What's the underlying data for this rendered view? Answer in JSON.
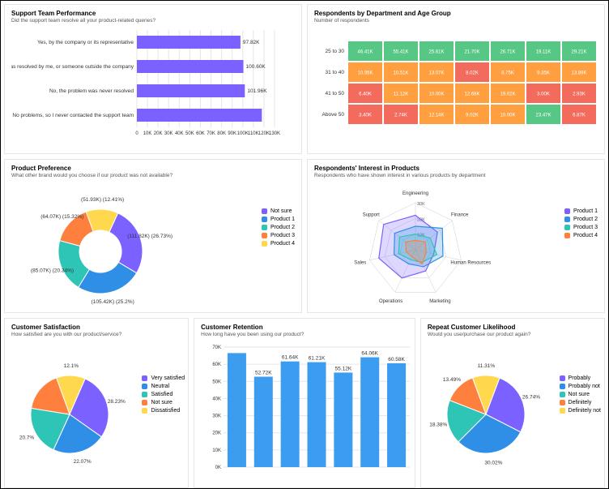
{
  "colors": {
    "purple": "#7b61ff",
    "blue": "#2f8fe6",
    "teal": "#2ec4b6",
    "orange": "#ff7f3f",
    "yellow": "#ffd84d",
    "heat_green": "#57c785",
    "heat_orange": "#ff9f40",
    "heat_red": "#f36b5c",
    "blue_bar": "#3b9cf0",
    "grid": "#e6e6e6",
    "bg": "#ffffff"
  },
  "support_perf": {
    "title": "Support Team Performance",
    "subtitle": "Did the support team resolve all your product-related queries?",
    "xmax": 130,
    "xtick_step": 10,
    "xtick_suffix": "K",
    "bar_color": "#7b61ff",
    "rows": [
      {
        "label": "Yes, by the company or its representative",
        "value": 97.82,
        "display": "97.82K"
      },
      {
        "label": "No, it was resolved by me, or someone outside the company",
        "value": 100.6,
        "display": "100.60K"
      },
      {
        "label": "No, the problem was never resolved",
        "value": 101.96,
        "display": "101.96K"
      },
      {
        "label": "No problems, so I never contacted the support team",
        "value": 118,
        "display": ""
      }
    ]
  },
  "heatmap": {
    "title": "Respondents by Department and Age Group",
    "subtitle": "Number of respondents",
    "row_labels": [
      "25 to 30",
      "31 to 40",
      "41 to 50",
      "Above 50"
    ],
    "col_count": 7,
    "cells": [
      [
        {
          "v": "46.41K",
          "c": "heat_green"
        },
        {
          "v": "55.41K",
          "c": "heat_green"
        },
        {
          "v": "25.61K",
          "c": "heat_green"
        },
        {
          "v": "21.70K",
          "c": "heat_green"
        },
        {
          "v": "26.71K",
          "c": "heat_green"
        },
        {
          "v": "19.11K",
          "c": "heat_green"
        },
        {
          "v": "29.21K",
          "c": "heat_green"
        }
      ],
      [
        {
          "v": "10.95K",
          "c": "heat_orange"
        },
        {
          "v": "10.51K",
          "c": "heat_orange"
        },
        {
          "v": "13.07K",
          "c": "heat_orange"
        },
        {
          "v": "8.02K",
          "c": "heat_red"
        },
        {
          "v": "8.75K",
          "c": "heat_orange"
        },
        {
          "v": "9.35K",
          "c": "heat_orange"
        },
        {
          "v": "13.89K",
          "c": "heat_orange"
        }
      ],
      [
        {
          "v": "6.40K",
          "c": "heat_red"
        },
        {
          "v": "11.12K",
          "c": "heat_orange"
        },
        {
          "v": "10.00K",
          "c": "heat_orange"
        },
        {
          "v": "12.68K",
          "c": "heat_orange"
        },
        {
          "v": "19.02K",
          "c": "heat_orange"
        },
        {
          "v": "3.00K",
          "c": "heat_red"
        },
        {
          "v": "2.93K",
          "c": "heat_red"
        }
      ],
      [
        {
          "v": "3.40K",
          "c": "heat_red"
        },
        {
          "v": "2.74K",
          "c": "heat_red"
        },
        {
          "v": "12.14K",
          "c": "heat_orange"
        },
        {
          "v": "9.02K",
          "c": "heat_orange"
        },
        {
          "v": "10.00K",
          "c": "heat_orange"
        },
        {
          "v": "23.47K",
          "c": "heat_green"
        },
        {
          "v": "6.87K",
          "c": "heat_red"
        }
      ]
    ]
  },
  "product_pref": {
    "title": "Product Preference",
    "subtitle": "What other brand would you choose if our product was not available?",
    "legend": [
      "Not sure",
      "Product 1",
      "Product 2",
      "Product 3",
      "Product 4"
    ],
    "legend_colors": [
      "purple",
      "blue",
      "teal",
      "orange",
      "yellow"
    ],
    "slices": [
      {
        "label": "(51.93K) (12.41%)",
        "pct": 12.41,
        "c": "yellow"
      },
      {
        "label": "(111.82K) (26.73%)",
        "pct": 26.73,
        "c": "purple"
      },
      {
        "label": "(105.42K) (25.2%)",
        "pct": 25.2,
        "c": "blue"
      },
      {
        "label": "(85.07K) (20.34%)",
        "pct": 20.34,
        "c": "teal"
      },
      {
        "label": "(64.07K) (15.32%)",
        "pct": 15.32,
        "c": "orange"
      }
    ],
    "inner_radius_ratio": 0.5
  },
  "radar": {
    "title": "Respondents' Interest in Products",
    "subtitle": "Respondents who have shown interest in various products by department",
    "axes": [
      "Engineering",
      "Finance",
      "Human Resources",
      "Marketing",
      "Operations",
      "Sales",
      "Support"
    ],
    "ticks": [
      "10K",
      "20K",
      "30K"
    ],
    "max": 30,
    "series": [
      {
        "name": "Product 1",
        "c": "purple",
        "vals": [
          22,
          18,
          12,
          15,
          20,
          24,
          26
        ]
      },
      {
        "name": "Product 2",
        "c": "blue",
        "vals": [
          15,
          22,
          18,
          12,
          10,
          14,
          17
        ]
      },
      {
        "name": "Product 3",
        "c": "teal",
        "vals": [
          10,
          12,
          14,
          9,
          7,
          11,
          13
        ]
      },
      {
        "name": "Product 4",
        "c": "orange",
        "vals": [
          6,
          8,
          7,
          10,
          5,
          6,
          8
        ]
      }
    ]
  },
  "csat": {
    "title": "Customer Satisfaction",
    "subtitle": "How satisfied are you with our product/service?",
    "legend": [
      "Very satisfied",
      "Neutral",
      "Satisfied",
      "Not sure",
      "Dissatisfied"
    ],
    "legend_colors": [
      "purple",
      "blue",
      "teal",
      "orange",
      "yellow"
    ],
    "slices": [
      {
        "label": "12.1%",
        "pct": 12.1,
        "c": "yellow"
      },
      {
        "label": "28.23%",
        "pct": 28.23,
        "c": "purple"
      },
      {
        "label": "22.07%",
        "pct": 22.07,
        "c": "blue"
      },
      {
        "label": "20.7%",
        "pct": 20.7,
        "c": "teal"
      },
      {
        "label": "",
        "pct": 16.9,
        "c": "orange"
      }
    ]
  },
  "retention": {
    "title": "Customer Retention",
    "subtitle": "How long have you been using our product?",
    "ymax": 70,
    "ytick_step": 10,
    "ytick_suffix": "K",
    "bar_color": "#3b9cf0",
    "bars": [
      {
        "v": 66.5,
        "d": ""
      },
      {
        "v": 52.72,
        "d": "52.72K"
      },
      {
        "v": 61.64,
        "d": "61.64K"
      },
      {
        "v": 61.21,
        "d": "61.21K"
      },
      {
        "v": 55.12,
        "d": "55.12K"
      },
      {
        "v": 64.06,
        "d": "64.06K"
      },
      {
        "v": 60.58,
        "d": "60.58K"
      }
    ]
  },
  "repeat": {
    "title": "Repeat Customer Likelihood",
    "subtitle": "Would you use/purchase our product again?",
    "legend": [
      "Probably",
      "Probably not",
      "Not sure",
      "Definitely",
      "Definitely not"
    ],
    "legend_colors": [
      "purple",
      "blue",
      "teal",
      "orange",
      "yellow"
    ],
    "slices": [
      {
        "label": "11.31%",
        "pct": 11.31,
        "c": "yellow"
      },
      {
        "label": "26.74%",
        "pct": 26.74,
        "c": "purple"
      },
      {
        "label": "30.02%",
        "pct": 30.02,
        "c": "blue"
      },
      {
        "label": "18.38%",
        "pct": 18.38,
        "c": "teal"
      },
      {
        "label": "13.49%",
        "pct": 13.49,
        "c": "orange"
      }
    ]
  }
}
